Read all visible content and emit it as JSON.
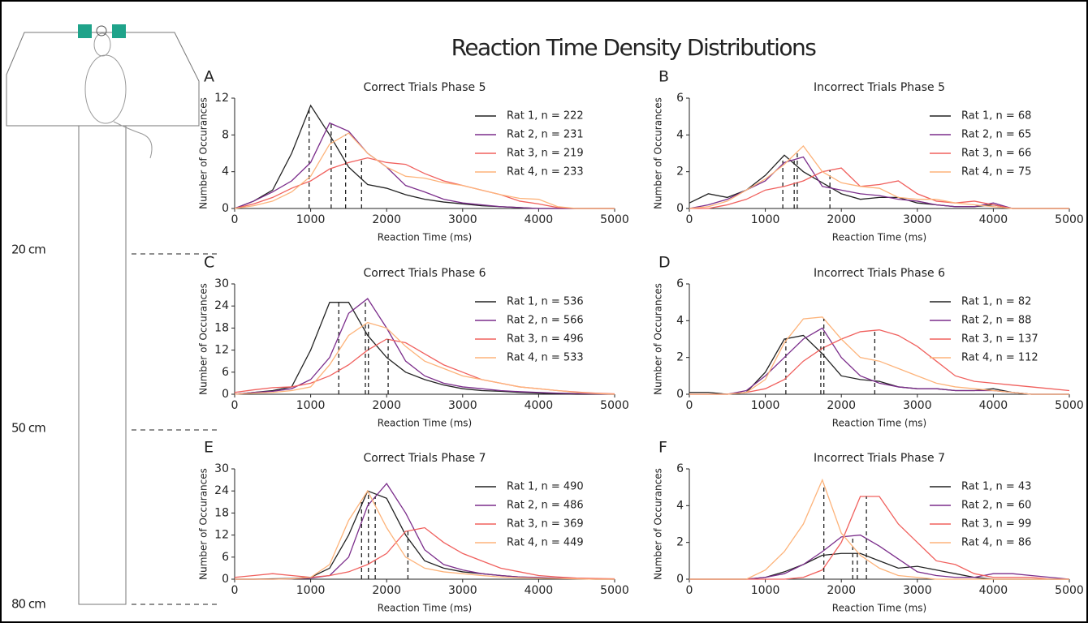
{
  "title": "Reaction Time Density Distributions",
  "track_labels": [
    "20 cm",
    "50 cm",
    "80 cm"
  ],
  "chart_data": [
    {
      "type": "line",
      "panel": "A",
      "title": "Correct Trials Phase 5",
      "x_label": "Reaction Time (ms)",
      "y_label": "Number of Occurances",
      "x": [
        0,
        250,
        500,
        750,
        1000,
        1250,
        1500,
        1750,
        2000,
        2250,
        2500,
        2750,
        3000,
        3250,
        3500,
        3750,
        4000,
        4250,
        4500,
        4750,
        5000
      ],
      "xlim": [
        0,
        5000
      ],
      "xticks": [
        0,
        1000,
        2000,
        3000,
        4000,
        5000
      ],
      "ylim": [
        0,
        12
      ],
      "yticks": [
        0,
        4,
        8,
        12
      ],
      "legend": "upper right",
      "series": [
        {
          "name": "Rat 1, n = 222",
          "color": "#222222",
          "marker": 980,
          "values": [
            0,
            0.8,
            2,
            6,
            11.2,
            8,
            4.5,
            2.6,
            2.2,
            1.5,
            1,
            0.7,
            0.5,
            0.3,
            0.2,
            0.1,
            0,
            0,
            0,
            0,
            0
          ]
        },
        {
          "name": "Rat 2, n = 231",
          "color": "#7b2d8b",
          "marker": 1270,
          "values": [
            0,
            0.8,
            1.8,
            3,
            5,
            9.3,
            8.4,
            6,
            4.5,
            2.5,
            1.8,
            1,
            0.6,
            0.4,
            0.2,
            0.1,
            0,
            0,
            0,
            0,
            0
          ]
        },
        {
          "name": "Rat 3, n = 219",
          "color": "#f0605d",
          "marker": 1670,
          "values": [
            0,
            0.5,
            1.2,
            2.2,
            3,
            4.3,
            5,
            5.5,
            5,
            4.8,
            3.8,
            3,
            2.5,
            2,
            1.5,
            0.8,
            0.5,
            0.1,
            0,
            0,
            0
          ]
        },
        {
          "name": "Rat 4, n = 233",
          "color": "#fdb37a",
          "marker": 1460,
          "values": [
            0,
            0.3,
            0.8,
            1.8,
            3.5,
            7,
            8.2,
            6,
            4.5,
            3.5,
            3.3,
            2.8,
            2.5,
            2,
            1.5,
            1.1,
            1,
            0.2,
            0,
            0,
            0
          ]
        }
      ]
    },
    {
      "type": "line",
      "panel": "B",
      "title": "Incorrect Trials Phase 5",
      "x_label": "Reaction Time (ms)",
      "y_label": "Number of Occurances",
      "x": [
        0,
        250,
        500,
        750,
        1000,
        1250,
        1500,
        1750,
        2000,
        2250,
        2500,
        2750,
        3000,
        3250,
        3500,
        3750,
        4000,
        4250,
        4500,
        4750,
        5000
      ],
      "xlim": [
        0,
        5000
      ],
      "xticks": [
        0,
        1000,
        2000,
        3000,
        4000,
        5000
      ],
      "ylim": [
        0,
        6
      ],
      "yticks": [
        0,
        2,
        4,
        6
      ],
      "legend": "upper right",
      "series": [
        {
          "name": "Rat 1, n = 68",
          "color": "#222222",
          "marker": 1230,
          "values": [
            0.3,
            0.8,
            0.6,
            1,
            1.8,
            2.9,
            2,
            1.4,
            0.8,
            0.5,
            0.6,
            0.6,
            0.3,
            0.2,
            0.1,
            0.1,
            0.2,
            0,
            0,
            0,
            0
          ]
        },
        {
          "name": "Rat 2, n = 65",
          "color": "#7b2d8b",
          "marker": 1380,
          "values": [
            0,
            0.2,
            0.5,
            1,
            1.5,
            2.5,
            2.8,
            1.2,
            1,
            0.8,
            0.7,
            0.5,
            0.4,
            0.2,
            0.1,
            0.1,
            0.3,
            0,
            0,
            0,
            0
          ]
        },
        {
          "name": "Rat 3, n = 66",
          "color": "#f0605d",
          "marker": 1850,
          "values": [
            0,
            0,
            0.2,
            0.5,
            1,
            1.2,
            1.5,
            2,
            2.2,
            1.2,
            1.3,
            1.5,
            0.8,
            0.4,
            0.3,
            0.4,
            0.2,
            0,
            0,
            0,
            0
          ]
        },
        {
          "name": "Rat 4, n = 75",
          "color": "#fdb37a",
          "marker": 1420,
          "values": [
            0,
            0.1,
            0.4,
            1,
            1.6,
            2.4,
            3.4,
            2,
            1.4,
            1.2,
            1.1,
            0.6,
            0.5,
            0.5,
            0.3,
            0.2,
            0.1,
            0,
            0,
            0,
            0
          ]
        }
      ]
    },
    {
      "type": "line",
      "panel": "C",
      "title": "Correct Trials Phase 6",
      "x_label": "Reaction Time (ms)",
      "y_label": "Number of Occurances",
      "x": [
        0,
        250,
        500,
        750,
        1000,
        1250,
        1500,
        1750,
        2000,
        2250,
        2500,
        2750,
        3000,
        3250,
        3500,
        3750,
        4000,
        4250,
        4500,
        4750,
        5000
      ],
      "xlim": [
        0,
        5000
      ],
      "xticks": [
        0,
        1000,
        2000,
        3000,
        4000,
        5000
      ],
      "ylim": [
        0,
        30
      ],
      "yticks": [
        0,
        6,
        12,
        18,
        24,
        30
      ],
      "legend": "upper right",
      "series": [
        {
          "name": "Rat 1, n = 536",
          "color": "#222222",
          "marker": 1370,
          "values": [
            0,
            0.5,
            1,
            2,
            12,
            25,
            25,
            16,
            10,
            6,
            4,
            2.5,
            1.5,
            1,
            0.8,
            0.5,
            0.3,
            0.1,
            0,
            0,
            0
          ]
        },
        {
          "name": "Rat 2, n = 566",
          "color": "#7b2d8b",
          "marker": 1720,
          "values": [
            0,
            0.5,
            0.8,
            1.5,
            4,
            10,
            22,
            26,
            18,
            9,
            5,
            3,
            2,
            1.5,
            1,
            0.7,
            0.5,
            0.3,
            0.2,
            0.1,
            0
          ]
        },
        {
          "name": "Rat 3, n = 496",
          "color": "#f0605d",
          "marker": 2020,
          "values": [
            0.5,
            1.2,
            1.8,
            2,
            3,
            5,
            8,
            12,
            15,
            14,
            11,
            8,
            6,
            4,
            3,
            2,
            1.5,
            1,
            0.6,
            0.3,
            0.1
          ]
        },
        {
          "name": "Rat 4, n = 533",
          "color": "#fdb37a",
          "marker": 1760,
          "values": [
            0,
            0.3,
            0.5,
            1,
            2,
            8,
            16,
            19.5,
            18,
            13,
            9,
            7,
            5,
            4,
            3,
            2,
            1.5,
            1,
            0.5,
            0.2,
            0
          ]
        }
      ]
    },
    {
      "type": "line",
      "panel": "D",
      "title": "Incorrect Trials Phase 6",
      "x_label": "Reaction Time (ms)",
      "y_label": "Number of Occurances",
      "x": [
        0,
        250,
        500,
        750,
        1000,
        1250,
        1500,
        1750,
        2000,
        2250,
        2500,
        2750,
        3000,
        3250,
        3500,
        3750,
        4000,
        4250,
        4500,
        4750,
        5000
      ],
      "xlim": [
        0,
        5000
      ],
      "xticks": [
        0,
        1000,
        2000,
        3000,
        4000,
        5000
      ],
      "ylim": [
        0,
        6
      ],
      "yticks": [
        0,
        2,
        4,
        6
      ],
      "legend": "upper right",
      "series": [
        {
          "name": "Rat 1, n = 82",
          "color": "#222222",
          "marker": 1270,
          "values": [
            0.1,
            0.1,
            0,
            0.1,
            1.2,
            3,
            3.2,
            2.2,
            1,
            0.8,
            0.7,
            0.4,
            0.3,
            0.3,
            0.2,
            0.2,
            0.3,
            0.1,
            0,
            0,
            0
          ]
        },
        {
          "name": "Rat 2, n = 88",
          "color": "#7b2d8b",
          "marker": 1730,
          "values": [
            0,
            0,
            0,
            0.2,
            1,
            2,
            3,
            3.6,
            2,
            1,
            0.6,
            0.4,
            0.3,
            0.3,
            0.2,
            0.2,
            0.2,
            0.1,
            0,
            0,
            0
          ]
        },
        {
          "name": "Rat 3, n = 137",
          "color": "#f0605d",
          "marker": 2440,
          "values": [
            0,
            0,
            0,
            0.1,
            0.3,
            0.8,
            1.8,
            2.5,
            3,
            3.4,
            3.5,
            3.2,
            2.6,
            1.8,
            1,
            0.7,
            0.6,
            0.5,
            0.4,
            0.3,
            0.2
          ]
        },
        {
          "name": "Rat 4, n = 112",
          "color": "#fdb37a",
          "marker": 1770,
          "values": [
            0,
            0,
            0,
            0.1,
            0.8,
            2.8,
            4.1,
            4.2,
            3,
            2,
            1.8,
            1.4,
            1,
            0.6,
            0.4,
            0.3,
            0.2,
            0.1,
            0,
            0,
            0
          ]
        }
      ]
    },
    {
      "type": "line",
      "panel": "E",
      "title": "Correct Trials Phase 7",
      "x_label": "Reaction Time (ms)",
      "y_label": "Number of Occurances",
      "x": [
        0,
        250,
        500,
        750,
        1000,
        1250,
        1500,
        1750,
        2000,
        2250,
        2500,
        2750,
        3000,
        3250,
        3500,
        3750,
        4000,
        4250,
        4500,
        4750,
        5000
      ],
      "xlim": [
        0,
        5000
      ],
      "xticks": [
        0,
        1000,
        2000,
        3000,
        4000,
        5000
      ],
      "ylim": [
        0,
        30
      ],
      "yticks": [
        0,
        6,
        12,
        18,
        24,
        30
      ],
      "legend": "upper right",
      "series": [
        {
          "name": "Rat 1, n = 490",
          "color": "#222222",
          "marker": 1760,
          "values": [
            0,
            0,
            0.1,
            0.2,
            0.5,
            3,
            12,
            24,
            22,
            12,
            5,
            3,
            2,
            1.5,
            1,
            0.6,
            0.4,
            0.2,
            0.1,
            0,
            0
          ]
        },
        {
          "name": "Rat 2, n = 486",
          "color": "#7b2d8b",
          "marker": 1850,
          "values": [
            0,
            0,
            0,
            0.1,
            0.3,
            1,
            6,
            20,
            26,
            18,
            8,
            4,
            2.5,
            1.5,
            1,
            0.6,
            0.5,
            0.3,
            0.2,
            0.1,
            0
          ]
        },
        {
          "name": "Rat 3, n = 369",
          "color": "#f0605d",
          "marker": 2280,
          "values": [
            0.5,
            1,
            1.5,
            1,
            0.5,
            1,
            2,
            4,
            7,
            13,
            14,
            10,
            7,
            5,
            3,
            2,
            1,
            0.6,
            0.3,
            0.2,
            0.1
          ]
        },
        {
          "name": "Rat 4, n = 449",
          "color": "#fdb37a",
          "marker": 1670,
          "values": [
            0,
            0,
            0,
            0.1,
            0.5,
            4,
            16,
            24,
            14,
            6,
            3,
            2,
            1.5,
            1,
            0.6,
            0.4,
            0.3,
            0.2,
            0.1,
            0,
            0
          ]
        }
      ]
    },
    {
      "type": "line",
      "panel": "F",
      "title": "Incorrect Trials Phase 7",
      "x_label": "Reaction Time (ms)",
      "y_label": "Number of Occurances",
      "x": [
        0,
        250,
        500,
        750,
        1000,
        1250,
        1500,
        1750,
        2000,
        2250,
        2500,
        2750,
        3000,
        3250,
        3500,
        3750,
        4000,
        4250,
        4500,
        4750,
        5000
      ],
      "xlim": [
        0,
        5000
      ],
      "xticks": [
        0,
        1000,
        2000,
        3000,
        4000,
        5000
      ],
      "ylim": [
        0,
        6
      ],
      "yticks": [
        0,
        2,
        4,
        6
      ],
      "legend": "upper right",
      "series": [
        {
          "name": "Rat 1, n = 43",
          "color": "#222222",
          "marker": 2210,
          "values": [
            0,
            0,
            0,
            0,
            0.1,
            0.4,
            0.8,
            1.3,
            1.4,
            1.4,
            1,
            0.6,
            0.7,
            0.5,
            0.3,
            0.1,
            0,
            0,
            0,
            0,
            0
          ]
        },
        {
          "name": "Rat 2, n = 60",
          "color": "#7b2d8b",
          "marker": 2150,
          "values": [
            0,
            0,
            0,
            0,
            0.1,
            0.3,
            0.8,
            1.5,
            2.3,
            2.4,
            1.8,
            1.1,
            0.4,
            0.2,
            0.1,
            0.1,
            0.3,
            0.3,
            0.2,
            0.1,
            0
          ]
        },
        {
          "name": "Rat 3, n = 99",
          "color": "#f0605d",
          "marker": 2330,
          "values": [
            0,
            0,
            0,
            0,
            0,
            0,
            0.1,
            0.5,
            2,
            4.5,
            4.5,
            3,
            2,
            1,
            0.8,
            0.3,
            0.1,
            0.1,
            0.1,
            0,
            0
          ]
        },
        {
          "name": "Rat 4, n = 86",
          "color": "#fdb37a",
          "marker": 1770,
          "values": [
            0,
            0,
            0,
            0,
            0.5,
            1.5,
            3,
            5.4,
            2.5,
            1.3,
            0.6,
            0.2,
            0.1,
            0,
            0,
            0,
            0,
            0,
            0,
            0,
            0
          ]
        }
      ]
    }
  ]
}
